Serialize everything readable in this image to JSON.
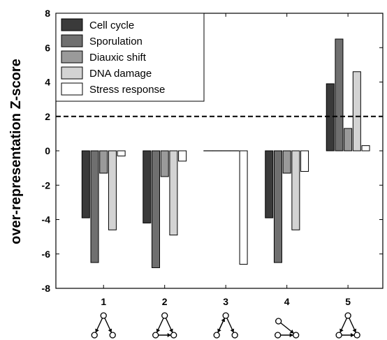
{
  "chart_data": {
    "type": "bar",
    "ylabel": "over-representation Z-score",
    "xlabel": "",
    "categories": [
      "1",
      "2",
      "3",
      "4",
      "5"
    ],
    "ylim": [
      -8,
      8
    ],
    "yticks": [
      8,
      6,
      4,
      2,
      0,
      -2,
      -4,
      -6,
      -8
    ],
    "threshold": 2,
    "threshold_style": "dashed",
    "grid": false,
    "legend_position": "top-left",
    "series": [
      {
        "name": "Cell cycle",
        "color": "#3a3a3a",
        "values": [
          -3.9,
          -4.2,
          0,
          -3.9,
          3.9
        ]
      },
      {
        "name": "Sporulation",
        "color": "#6f6f6f",
        "values": [
          -6.5,
          -6.8,
          0,
          -6.5,
          6.5
        ]
      },
      {
        "name": "Diauxic shift",
        "color": "#9a9a9a",
        "values": [
          -1.3,
          -1.5,
          0,
          -1.3,
          1.3
        ]
      },
      {
        "name": "DNA damage",
        "color": "#d3d3d3",
        "values": [
          -4.6,
          -4.9,
          0,
          -4.6,
          4.6
        ]
      },
      {
        "name": "Stress response",
        "color": "#ffffff",
        "values": [
          -0.3,
          -0.6,
          -6.6,
          -1.2,
          0.3
        ]
      }
    ],
    "motif_icons": [
      "motif-1-icon",
      "motif-2-icon",
      "motif-3-icon",
      "motif-4-icon",
      "motif-5-icon"
    ]
  }
}
